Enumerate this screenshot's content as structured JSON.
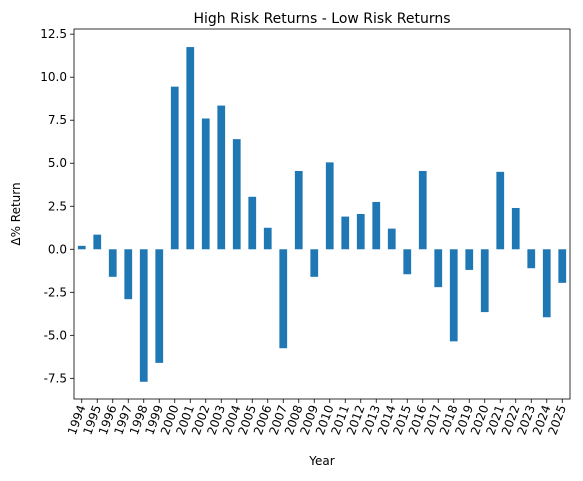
{
  "chart_data": {
    "type": "bar",
    "title": "High Risk Returns - Low Risk Returns",
    "xlabel": "Year",
    "ylabel": "Δ% Return",
    "categories": [
      "1994",
      "1995",
      "1996",
      "1997",
      "1998",
      "1999",
      "2000",
      "2001",
      "2002",
      "2003",
      "2004",
      "2005",
      "2006",
      "2007",
      "2008",
      "2009",
      "2010",
      "2011",
      "2012",
      "2013",
      "2014",
      "2015",
      "2016",
      "2017",
      "2018",
      "2019",
      "2020",
      "2021",
      "2022",
      "2023",
      "2024",
      "2025"
    ],
    "values": [
      0.2,
      0.85,
      -1.6,
      -2.9,
      -7.7,
      -6.6,
      9.45,
      11.75,
      7.6,
      8.35,
      6.4,
      3.05,
      1.25,
      -5.75,
      4.55,
      -1.6,
      5.05,
      1.9,
      2.05,
      2.75,
      1.2,
      -1.45,
      4.55,
      -2.2,
      -5.35,
      -1.2,
      -3.65,
      4.5,
      2.4,
      -1.1,
      -3.95,
      -1.95
    ],
    "yticks": [
      -7.5,
      -5.0,
      -2.5,
      0.0,
      2.5,
      5.0,
      7.5,
      10.0,
      12.5
    ],
    "ylim": [
      -8.7,
      12.8
    ],
    "bar_color": "#1f77b4",
    "grid": false,
    "legend": "none"
  }
}
